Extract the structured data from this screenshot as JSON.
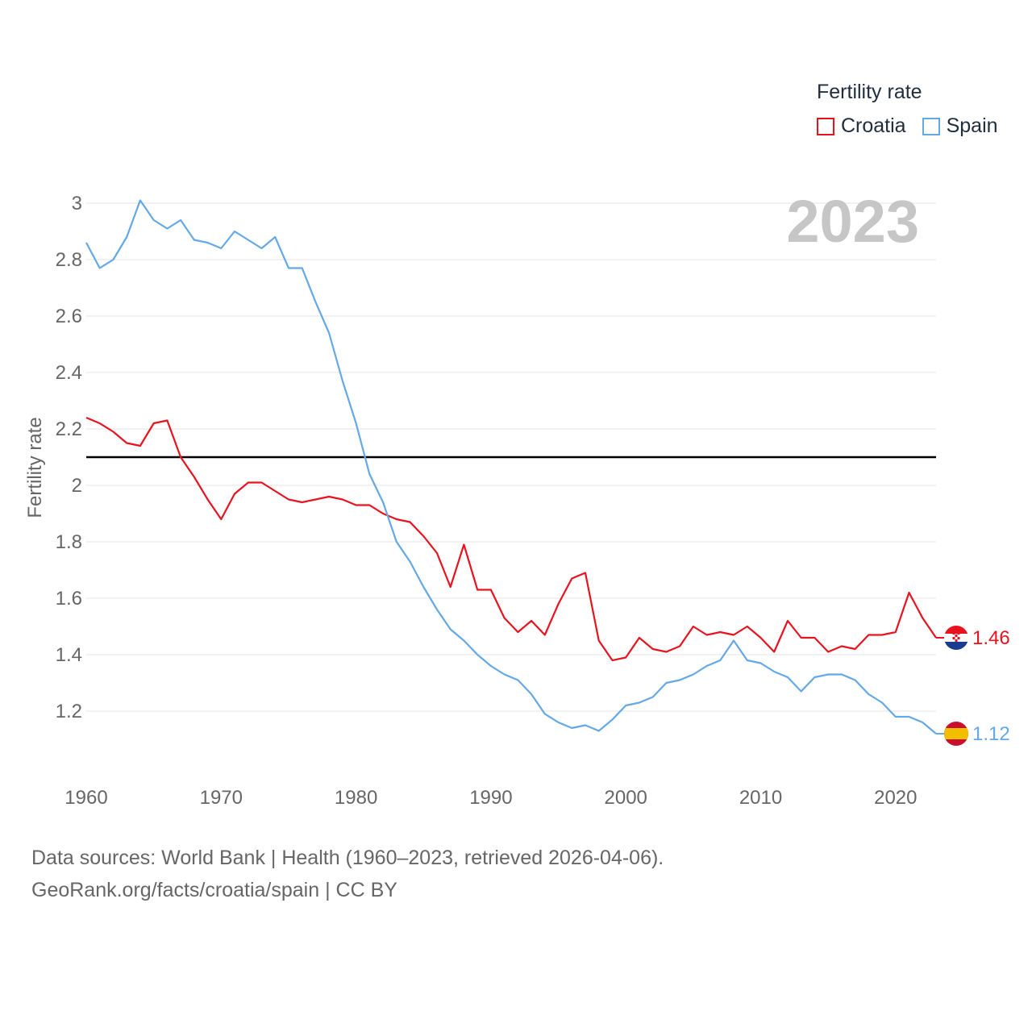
{
  "legend": {
    "title": "Fertility rate",
    "items": [
      {
        "label": "Croatia",
        "color": "#e8131f"
      },
      {
        "label": "Spain",
        "color": "#64a8e6"
      }
    ]
  },
  "source": {
    "line1": "Data sources: World Bank | Health (1960–2023, retrieved 2026-04-06).",
    "line2": "GeoRank.org/facts/croatia/spain | CC BY"
  },
  "chart_data": {
    "type": "line",
    "title": "",
    "year_label": "2023",
    "xlabel": "",
    "ylabel": "Fertility rate",
    "xlim": [
      1960,
      2023
    ],
    "ylim": [
      1.0,
      3.1
    ],
    "xticks": [
      1960,
      1970,
      1980,
      1990,
      2000,
      2010,
      2020
    ],
    "yticks": [
      1.2,
      1.4,
      1.6,
      1.8,
      2,
      2.2,
      2.4,
      2.6,
      2.8,
      3
    ],
    "ytick_labels": [
      "1.2",
      "1.4",
      "1.6",
      "1.8",
      "2",
      "2.2",
      "2.4",
      "2.6",
      "2.8",
      "3"
    ],
    "reference_line": 2.1,
    "x": [
      1960,
      1961,
      1962,
      1963,
      1964,
      1965,
      1966,
      1967,
      1968,
      1969,
      1970,
      1971,
      1972,
      1973,
      1974,
      1975,
      1976,
      1977,
      1978,
      1979,
      1980,
      1981,
      1982,
      1983,
      1984,
      1985,
      1986,
      1987,
      1988,
      1989,
      1990,
      1991,
      1992,
      1993,
      1994,
      1995,
      1996,
      1997,
      1998,
      1999,
      2000,
      2001,
      2002,
      2003,
      2004,
      2005,
      2006,
      2007,
      2008,
      2009,
      2010,
      2011,
      2012,
      2013,
      2014,
      2015,
      2016,
      2017,
      2018,
      2019,
      2020,
      2021,
      2022,
      2023
    ],
    "series": [
      {
        "name": "Croatia",
        "color": "#e8131f",
        "end_label": "1.46",
        "values": [
          2.24,
          2.22,
          2.19,
          2.15,
          2.14,
          2.22,
          2.23,
          2.1,
          2.03,
          1.95,
          1.88,
          1.97,
          2.01,
          2.01,
          1.98,
          1.95,
          1.94,
          1.95,
          1.96,
          1.95,
          1.93,
          1.93,
          1.9,
          1.88,
          1.87,
          1.82,
          1.76,
          1.64,
          1.79,
          1.63,
          1.63,
          1.53,
          1.48,
          1.52,
          1.47,
          1.58,
          1.67,
          1.69,
          1.45,
          1.38,
          1.39,
          1.46,
          1.42,
          1.41,
          1.43,
          1.5,
          1.47,
          1.48,
          1.47,
          1.5,
          1.46,
          1.41,
          1.52,
          1.46,
          1.46,
          1.41,
          1.43,
          1.42,
          1.47,
          1.47,
          1.48,
          1.62,
          1.53,
          1.46
        ]
      },
      {
        "name": "Spain",
        "color": "#64a8e6",
        "end_label": "1.12",
        "values": [
          2.86,
          2.77,
          2.8,
          2.88,
          3.01,
          2.94,
          2.91,
          2.94,
          2.87,
          2.86,
          2.84,
          2.9,
          2.87,
          2.84,
          2.88,
          2.77,
          2.77,
          2.65,
          2.54,
          2.37,
          2.22,
          2.04,
          1.94,
          1.8,
          1.73,
          1.64,
          1.56,
          1.49,
          1.45,
          1.4,
          1.36,
          1.33,
          1.31,
          1.26,
          1.19,
          1.16,
          1.14,
          1.15,
          1.13,
          1.17,
          1.22,
          1.23,
          1.25,
          1.3,
          1.31,
          1.33,
          1.36,
          1.38,
          1.45,
          1.38,
          1.37,
          1.34,
          1.32,
          1.27,
          1.32,
          1.33,
          1.33,
          1.31,
          1.26,
          1.23,
          1.18,
          1.18,
          1.16,
          1.12
        ]
      }
    ]
  }
}
